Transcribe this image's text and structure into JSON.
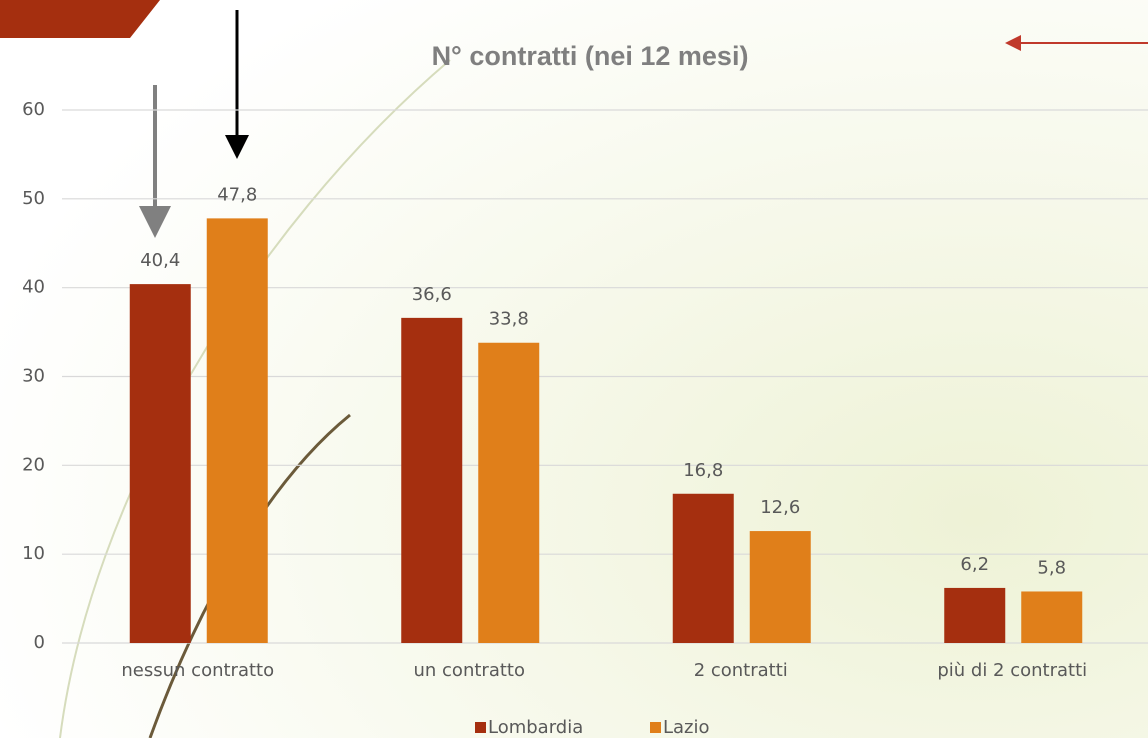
{
  "chart_data": {
    "type": "bar",
    "title": "N° contratti (nei 12 mesi)",
    "categories": [
      "nessun contratto",
      "un contratto",
      "2 contratti",
      "più di 2 contratti"
    ],
    "series": [
      {
        "name": "Lombardia",
        "color": "#a52f0f",
        "values": [
          40.4,
          36.6,
          16.8,
          6.2
        ],
        "value_labels": [
          "40,4",
          "36,6",
          "16,8",
          "6,2"
        ]
      },
      {
        "name": "Lazio",
        "color": "#e07f1a",
        "values": [
          47.8,
          33.8,
          12.6,
          5.8
        ],
        "value_labels": [
          "47,8",
          "33,8",
          "12,6",
          "5,8"
        ]
      }
    ],
    "ylim": [
      0,
      60
    ],
    "yticks": [
      0,
      10,
      20,
      30,
      40,
      50,
      60
    ],
    "grid": true,
    "legend": "bottom"
  }
}
